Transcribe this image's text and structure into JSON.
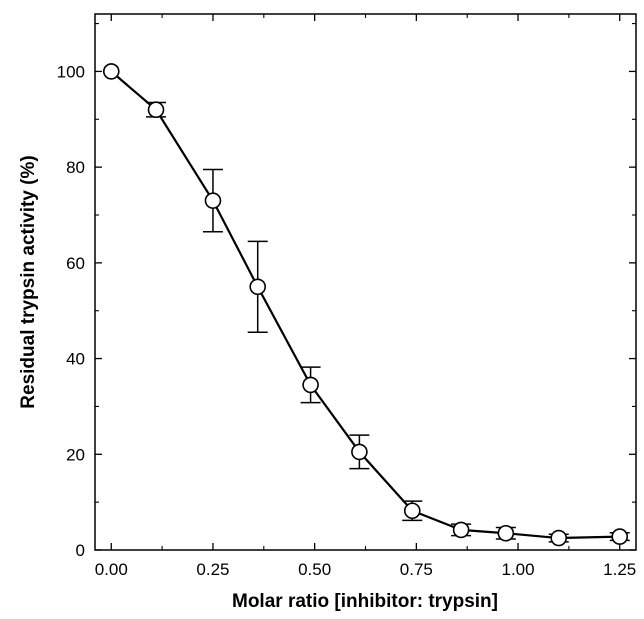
{
  "chart_data": {
    "type": "line",
    "title": "",
    "xlabel": "Molar ratio [inhibitor: trypsin]",
    "ylabel": "Residual trypsin activity (%)",
    "xlim": [
      -0.04,
      1.29
    ],
    "ylim": [
      0,
      112
    ],
    "x_ticks": [
      0.0,
      0.25,
      0.5,
      0.75,
      1.0,
      1.25
    ],
    "x_tick_labels": [
      "0.00",
      "0.25",
      "0.50",
      "0.75",
      "1.00",
      "1.25"
    ],
    "y_ticks": [
      0,
      20,
      40,
      60,
      80,
      100
    ],
    "y_tick_labels": [
      "0",
      "20",
      "40",
      "60",
      "80",
      "100"
    ],
    "grid": false,
    "marker": "open-circle",
    "series": [
      {
        "x": [
          0.0,
          0.11,
          0.25,
          0.36,
          0.49,
          0.61,
          0.74,
          0.86,
          0.97,
          1.1,
          1.25
        ],
        "y": [
          100.0,
          92.0,
          73.0,
          55.0,
          34.5,
          20.5,
          8.2,
          4.2,
          3.5,
          2.5,
          2.8
        ],
        "error": [
          0,
          1.5,
          6.5,
          9.5,
          3.7,
          3.5,
          2.0,
          1.2,
          1.2,
          0.8,
          0.8
        ]
      }
    ]
  }
}
